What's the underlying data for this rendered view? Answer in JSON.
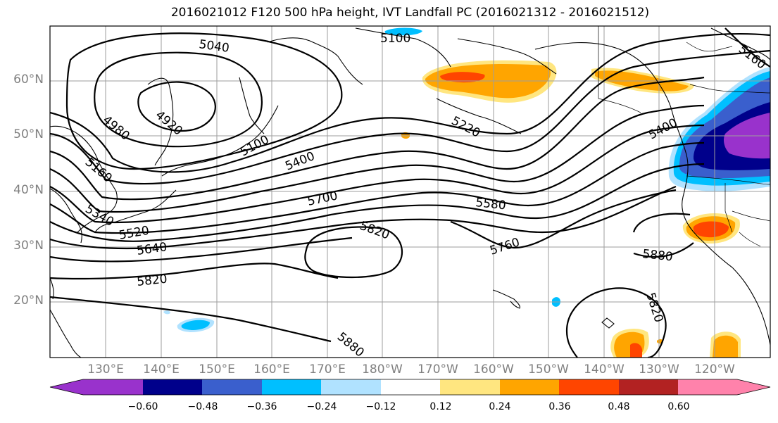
{
  "title": "2016021012 F120 500 hPa height, IVT Landfall PC (2016021312 - 2016021512)",
  "lat_labels": [
    "60°N",
    "50°N",
    "40°N",
    "30°N",
    "20°N"
  ],
  "lon_labels": [
    "130°E",
    "140°E",
    "150°E",
    "160°E",
    "170°E",
    "180°W",
    "170°W",
    "160°W",
    "150°W",
    "140°W",
    "130°W",
    "120°W"
  ],
  "contour_labels": [
    "5040",
    "5100",
    "4980",
    "4920",
    "5160",
    "5100",
    "5400",
    "5220",
    "5400",
    "5340",
    "5700",
    "5520",
    "5640",
    "5820",
    "5580",
    "5760",
    "5880",
    "5820",
    "5820",
    "5880",
    "5160"
  ],
  "colorbar": {
    "ticks": [
      "−0.60",
      "−0.48",
      "−0.36",
      "−0.24",
      "−0.12",
      "0.12",
      "0.24",
      "0.36",
      "0.48",
      "0.60"
    ],
    "colors": [
      "#9932cc",
      "#00008b",
      "#3a5fcd",
      "#00bfff",
      "#b0e2ff",
      "#ffffff",
      "#ffe680",
      "#ffa500",
      "#ff4500",
      "#b22222",
      "#ff82ab"
    ]
  },
  "map": {
    "projection": "cylindrical",
    "lon_range": "120°E to 105°W",
    "lat_range": "10°N to 70°N",
    "contour_interval": 60,
    "contour_units": "m"
  }
}
